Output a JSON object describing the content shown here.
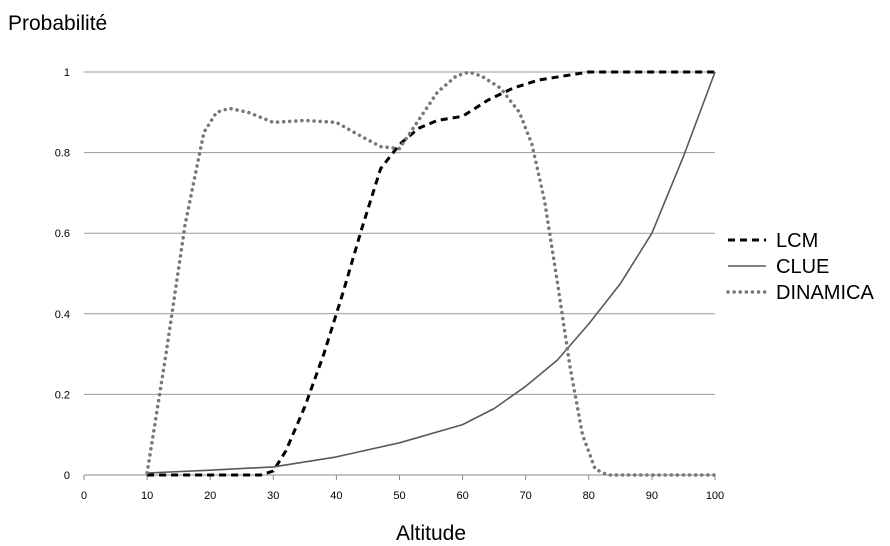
{
  "chart_data": {
    "type": "line",
    "title": "",
    "ylabel": "Probabilité",
    "xlabel": "Altitude",
    "xlim": [
      0,
      100
    ],
    "ylim": [
      0,
      1
    ],
    "xticks": [
      "0",
      "10",
      "20",
      "30",
      "40",
      "50",
      "60",
      "70",
      "80",
      "90",
      "100"
    ],
    "yticks": [
      "0",
      "0.2",
      "0.4",
      "0.6",
      "0.8",
      "1"
    ],
    "grid": "horizontal",
    "legend_position": "right",
    "series": [
      {
        "name": "LCM",
        "style": "dashed",
        "color": "#000000",
        "x": [
          10,
          22,
          28,
          30,
          32,
          35,
          38,
          41,
          44,
          47,
          50,
          53,
          56,
          60,
          64,
          68,
          72,
          76,
          80,
          85,
          90,
          95,
          100
        ],
        "y": [
          0,
          0,
          0,
          0.01,
          0.06,
          0.17,
          0.3,
          0.45,
          0.61,
          0.76,
          0.82,
          0.86,
          0.88,
          0.89,
          0.93,
          0.96,
          0.98,
          0.99,
          1.0,
          1.0,
          1.0,
          1.0,
          1.0
        ]
      },
      {
        "name": "CLUE",
        "style": "solid",
        "color": "#595959",
        "x": [
          10,
          20,
          30,
          40,
          50,
          60,
          65,
          70,
          75,
          80,
          85,
          90,
          95,
          100
        ],
        "y": [
          0.005,
          0.012,
          0.02,
          0.045,
          0.08,
          0.125,
          0.165,
          0.22,
          0.285,
          0.375,
          0.475,
          0.6,
          0.79,
          1.0
        ]
      },
      {
        "name": "DINAMICA",
        "style": "dotted",
        "color": "#777777",
        "x": [
          10,
          13,
          16,
          19,
          21,
          23,
          26,
          30,
          35,
          40,
          44,
          47,
          50,
          53,
          56,
          59,
          61,
          63,
          66,
          69,
          71,
          73,
          75,
          77,
          79,
          81,
          83,
          90,
          100
        ],
        "y": [
          0.005,
          0.3,
          0.62,
          0.85,
          0.9,
          0.91,
          0.9,
          0.875,
          0.88,
          0.875,
          0.84,
          0.815,
          0.81,
          0.88,
          0.95,
          0.99,
          1.0,
          0.99,
          0.96,
          0.9,
          0.82,
          0.68,
          0.48,
          0.27,
          0.1,
          0.015,
          0.0,
          0.0,
          0.0
        ]
      }
    ]
  }
}
